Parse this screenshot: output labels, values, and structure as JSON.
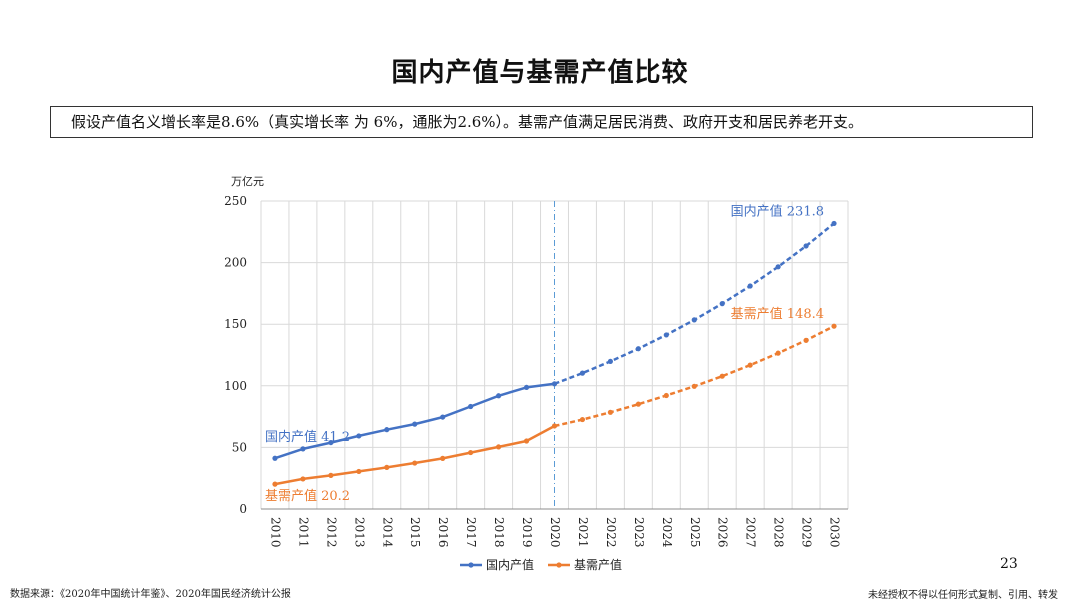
{
  "title": "国内产值与基需产值比较",
  "subtitle": "假设产值名义增长率是8.6%（真实增长率 为 6%，通胀为2.6%）。基需产值满足居民消费、政府开支和居民养老开支。",
  "page_number": "23",
  "footer": {
    "source": "数据来源：《2020年中国统计年鉴》、2020年国民经济统计公报",
    "rights": "未经授权不得以任何形式复制、引用、转发"
  },
  "colors": {
    "gdp": "#4472C4",
    "basic": "#ED7D31",
    "grid": "#D9D9D9",
    "divider": "#5B9BD5"
  },
  "chart_data": {
    "type": "line",
    "title": "国内产值与基需产值比较",
    "ylabel": "万亿元",
    "xlabel": "",
    "ylim": [
      0,
      250
    ],
    "yticks": [
      "0",
      "50",
      "100",
      "150",
      "200",
      "250"
    ],
    "categories": [
      "2010",
      "2011",
      "2012",
      "2013",
      "2014",
      "2015",
      "2016",
      "2017",
      "2018",
      "2019",
      "2020",
      "2021",
      "2022",
      "2023",
      "2024",
      "2025",
      "2026",
      "2027",
      "2028",
      "2029",
      "2030"
    ],
    "divider_at": "2020",
    "projection_start": "2020",
    "series": [
      {
        "name": "国内产值",
        "color_key": "gdp",
        "values": [
          41.2,
          48.8,
          53.9,
          59.3,
          64.4,
          68.9,
          74.6,
          83.2,
          91.9,
          98.7,
          101.6,
          110.3,
          119.8,
          130.1,
          141.3,
          153.5,
          166.7,
          181.0,
          196.6,
          213.5,
          231.8
        ]
      },
      {
        "name": "基需产值",
        "color_key": "basic",
        "values": [
          20.2,
          24.4,
          27.3,
          30.5,
          33.8,
          37.3,
          41.1,
          45.8,
          50.4,
          55.2,
          67.4,
          72.6,
          78.5,
          85.1,
          92.1,
          99.6,
          107.8,
          116.8,
          126.5,
          136.9,
          148.4
        ]
      }
    ],
    "annotations": [
      {
        "text": "国内产值 41.2",
        "series": 0,
        "point": 0,
        "placement": "above-right"
      },
      {
        "text": "基需产值 20.2",
        "series": 1,
        "point": 0,
        "placement": "below-right"
      },
      {
        "text": "国内产值 231.8",
        "series": 0,
        "point": 20,
        "placement": "above-left"
      },
      {
        "text": "基需产值 148.4",
        "series": 1,
        "point": 20,
        "placement": "above-left"
      }
    ],
    "legend": {
      "placement": "bottom",
      "entries": [
        "国内产值",
        "基需产值"
      ]
    }
  }
}
